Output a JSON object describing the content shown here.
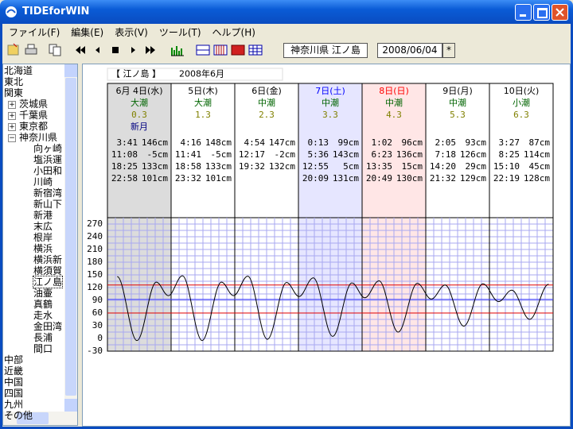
{
  "window": {
    "title": "TIDEforWIN"
  },
  "menu": [
    "ファイル(F)",
    "編集(E)",
    "表示(V)",
    "ツール(T)",
    "ヘルプ(H)"
  ],
  "toolbar": {
    "location": "神奈川県 江ノ島",
    "date": "2008/06/04",
    "button": "*"
  },
  "tree": [
    {
      "label": "北海道",
      "level": 0
    },
    {
      "label": "東北",
      "level": 0
    },
    {
      "label": "関東",
      "level": 0
    },
    {
      "label": "茨城県",
      "level": 1,
      "toggle": "+"
    },
    {
      "label": "千葉県",
      "level": 1,
      "toggle": "+"
    },
    {
      "label": "東京都",
      "level": 1,
      "toggle": "+"
    },
    {
      "label": "神奈川県",
      "level": 1,
      "toggle": "−"
    },
    {
      "label": "向ヶ崎",
      "level": 2
    },
    {
      "label": "塩浜運",
      "level": 2
    },
    {
      "label": "小田和",
      "level": 2
    },
    {
      "label": "川崎",
      "level": 2
    },
    {
      "label": "新宿湾",
      "level": 2
    },
    {
      "label": "新山下",
      "level": 2
    },
    {
      "label": "新港",
      "level": 2
    },
    {
      "label": "末広",
      "level": 2
    },
    {
      "label": "根岸",
      "level": 2
    },
    {
      "label": "横浜",
      "level": 2
    },
    {
      "label": "横浜新",
      "level": 2
    },
    {
      "label": "横須賀",
      "level": 2
    },
    {
      "label": "江ノ島",
      "level": 2,
      "selected": true
    },
    {
      "label": "油壷",
      "level": 2
    },
    {
      "label": "真鶴",
      "level": 2
    },
    {
      "label": "走水",
      "level": 2
    },
    {
      "label": "金田湾",
      "level": 2
    },
    {
      "label": "長浦",
      "level": 2
    },
    {
      "label": "間口",
      "level": 2
    },
    {
      "label": "中部",
      "level": 0
    },
    {
      "label": "近畿",
      "level": 0
    },
    {
      "label": "中国",
      "level": 0
    },
    {
      "label": "四国",
      "level": 0
    },
    {
      "label": "九州",
      "level": 0
    },
    {
      "label": "その他",
      "level": 0
    }
  ],
  "header": {
    "station": "【 江ノ島 】",
    "month": "2008年6月"
  },
  "days": [
    {
      "date": "6月 4日(水)",
      "tide": "大潮",
      "age": "0.3",
      "moon": "新月",
      "bg": "#dcdcdc",
      "color": "#000000",
      "tides": [
        [
          "3:41",
          "146cm"
        ],
        [
          "11:08",
          "-5cm"
        ],
        [
          "18:25",
          "133cm"
        ],
        [
          "22:58",
          "101cm"
        ]
      ]
    },
    {
      "date": "5日(木)",
      "tide": "大潮",
      "age": "1.3",
      "bg": "#ffffff",
      "color": "#000000",
      "tides": [
        [
          "4:16",
          "148cm"
        ],
        [
          "11:41",
          "-5cm"
        ],
        [
          "18:58",
          "133cm"
        ],
        [
          "23:32",
          "101cm"
        ]
      ]
    },
    {
      "date": "6日(金)",
      "tide": "中潮",
      "age": "2.3",
      "bg": "#ffffff",
      "color": "#000000",
      "tides": [
        [
          "4:54",
          "147cm"
        ],
        [
          "12:17",
          "-2cm"
        ],
        [
          "19:32",
          "132cm"
        ]
      ]
    },
    {
      "date": "7日(土)",
      "tide": "中潮",
      "age": "3.3",
      "bg": "#e6e6ff",
      "color": "#0000ff",
      "tides": [
        [
          "0:13",
          "99cm"
        ],
        [
          "5:36",
          "143cm"
        ],
        [
          "12:55",
          "5cm"
        ],
        [
          "20:09",
          "131cm"
        ]
      ]
    },
    {
      "date": "8日(日)",
      "tide": "中潮",
      "age": "4.3",
      "bg": "#ffe6e6",
      "color": "#ff0000",
      "tides": [
        [
          "1:02",
          "96cm"
        ],
        [
          "6:23",
          "136cm"
        ],
        [
          "13:35",
          "15cm"
        ],
        [
          "20:49",
          "130cm"
        ]
      ]
    },
    {
      "date": "9日(月)",
      "tide": "中潮",
      "age": "5.3",
      "bg": "#ffffff",
      "color": "#000000",
      "tides": [
        [
          "2:05",
          "93cm"
        ],
        [
          "7:18",
          "126cm"
        ],
        [
          "14:20",
          "29cm"
        ],
        [
          "21:32",
          "129cm"
        ]
      ]
    },
    {
      "date": "10日(火)",
      "tide": "小潮",
      "age": "6.3",
      "bg": "#ffffff",
      "color": "#000000",
      "tides": [
        [
          "3:27",
          "87cm"
        ],
        [
          "8:25",
          "114cm"
        ],
        [
          "15:10",
          "45cm"
        ],
        [
          "22:19",
          "128cm"
        ]
      ]
    }
  ],
  "chart_data": {
    "type": "line",
    "color": "#000000",
    "grid": true,
    "x": [
      3.683,
      11.133,
      18.417,
      22.967,
      28.267,
      35.683,
      42.967,
      47.533,
      52.9,
      60.283,
      67.533,
      72.217,
      77.6,
      84.917,
      92.15,
      97.033,
      102.383,
      109.583,
      116.817,
      122.083,
      127.3,
      134.333,
      141.533,
      147.45,
      152.417,
      159.167,
      166.317
    ],
    "values": [
      146,
      -5,
      133,
      101,
      148,
      -5,
      133,
      101,
      147,
      -2,
      132,
      99,
      143,
      5,
      131,
      96,
      136,
      15,
      130,
      93,
      126,
      29,
      129,
      87,
      114,
      45,
      128
    ],
    "xlim": [
      0,
      168
    ],
    "ylim": [
      -30,
      285
    ],
    "yticks": [
      270,
      240,
      210,
      180,
      150,
      120,
      90,
      60,
      30,
      0,
      -30
    ],
    "reference_lines": [
      {
        "value": 126,
        "color": "#e00000"
      },
      {
        "value": 92,
        "color": "#4040ff"
      },
      {
        "value": 60,
        "color": "#e00000"
      }
    ]
  }
}
